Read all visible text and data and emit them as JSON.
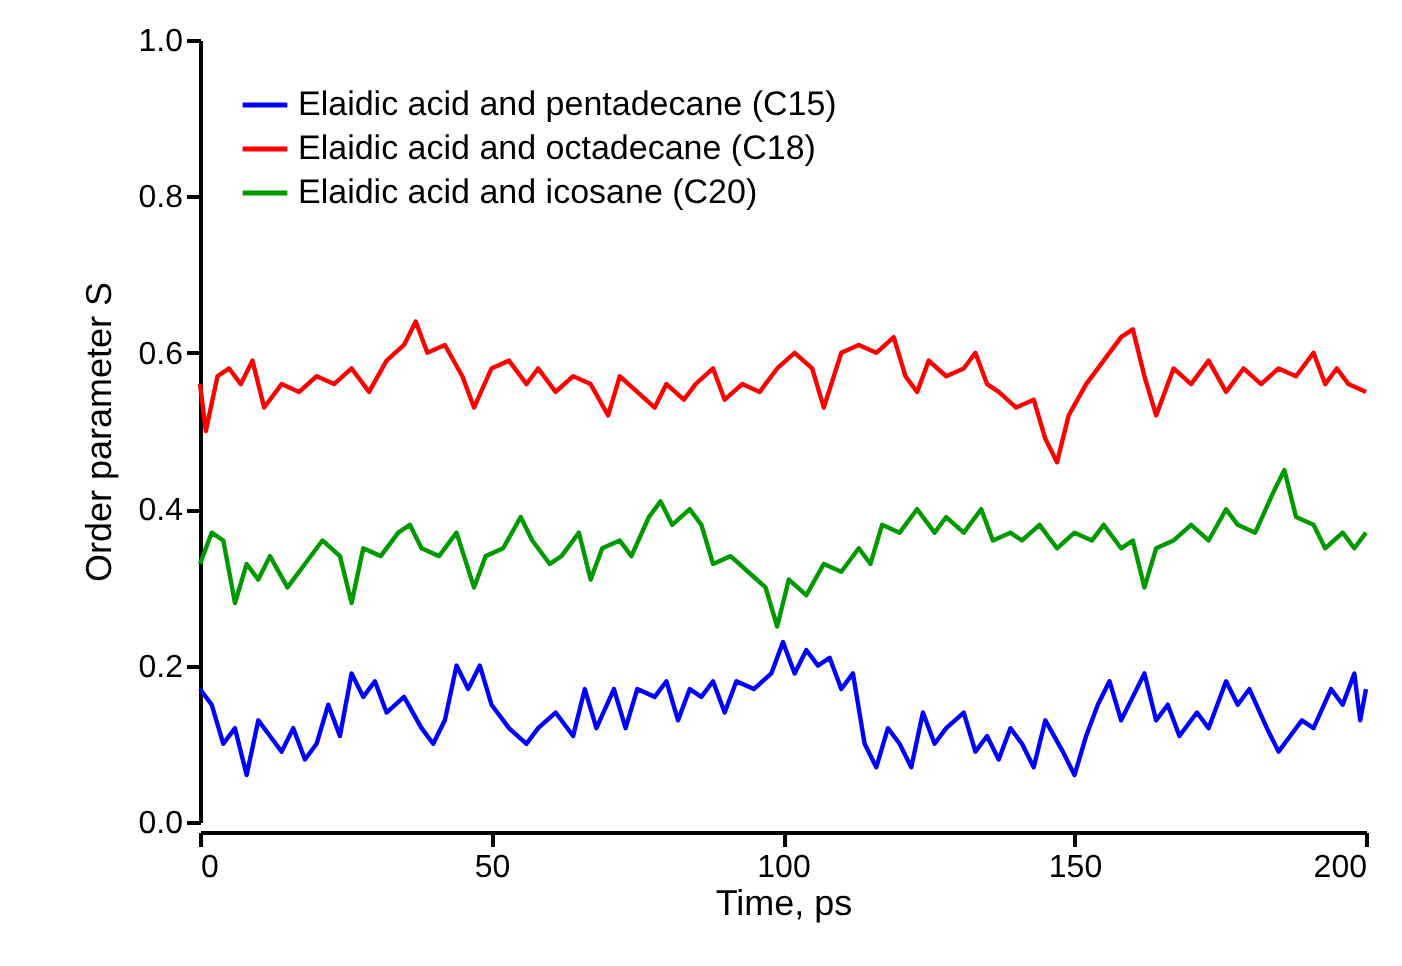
{
  "chart_data": {
    "type": "line",
    "xlabel": "Time, ps",
    "ylabel": "Order parameter S",
    "xlim": [
      0,
      200
    ],
    "ylim": [
      0,
      1
    ],
    "xticks": [
      0,
      50,
      100,
      150,
      200
    ],
    "yticks": [
      {
        "value": 0,
        "label": "0.0"
      },
      0.2,
      0.4,
      0.6,
      0.8,
      {
        "value": 1,
        "label": "1.0"
      }
    ],
    "grid": false,
    "legend": "top left",
    "line_style": "solid",
    "marker": "none",
    "series": [
      {
        "name": "Elaidic acid and pentadecane (C15)",
        "color": "#0000ff",
        "x": [
          0,
          2,
          4,
          6,
          8,
          10,
          12,
          14,
          16,
          18,
          20,
          22,
          24,
          26,
          28,
          30,
          32,
          35,
          38,
          40,
          42,
          44,
          46,
          48,
          50,
          53,
          56,
          58,
          61,
          64,
          66,
          68,
          71,
          73,
          75,
          78,
          80,
          82,
          84,
          86,
          88,
          90,
          92,
          95,
          98,
          100,
          102,
          104,
          106,
          108,
          110,
          112,
          114,
          116,
          118,
          120,
          122,
          124,
          126,
          128,
          131,
          133,
          135,
          137,
          139,
          141,
          143,
          145,
          148,
          150,
          152,
          154,
          156,
          158,
          160,
          162,
          164,
          166,
          168,
          171,
          173,
          176,
          178,
          180,
          183,
          185,
          187,
          189,
          191,
          194,
          196,
          198,
          199,
          200
        ],
        "values": [
          0.17,
          0.15,
          0.1,
          0.12,
          0.06,
          0.13,
          0.11,
          0.09,
          0.12,
          0.08,
          0.1,
          0.15,
          0.11,
          0.19,
          0.16,
          0.18,
          0.14,
          0.16,
          0.12,
          0.1,
          0.13,
          0.2,
          0.17,
          0.2,
          0.15,
          0.12,
          0.1,
          0.12,
          0.14,
          0.11,
          0.17,
          0.12,
          0.17,
          0.12,
          0.17,
          0.16,
          0.18,
          0.13,
          0.17,
          0.16,
          0.18,
          0.14,
          0.18,
          0.17,
          0.19,
          0.23,
          0.19,
          0.22,
          0.2,
          0.21,
          0.17,
          0.19,
          0.1,
          0.07,
          0.12,
          0.1,
          0.07,
          0.14,
          0.1,
          0.12,
          0.14,
          0.09,
          0.11,
          0.08,
          0.12,
          0.1,
          0.07,
          0.13,
          0.09,
          0.06,
          0.11,
          0.15,
          0.18,
          0.13,
          0.16,
          0.19,
          0.13,
          0.15,
          0.11,
          0.14,
          0.12,
          0.18,
          0.15,
          0.17,
          0.12,
          0.09,
          0.11,
          0.13,
          0.12,
          0.17,
          0.15,
          0.19,
          0.13,
          0.17
        ]
      },
      {
        "name": "Elaidic acid and octadecane (C18)",
        "color": "#ff0000",
        "x": [
          0,
          1,
          3,
          5,
          7,
          9,
          11,
          14,
          17,
          20,
          23,
          26,
          29,
          32,
          35,
          37,
          39,
          42,
          45,
          47,
          50,
          53,
          56,
          58,
          61,
          64,
          67,
          70,
          72,
          75,
          78,
          80,
          83,
          85,
          88,
          90,
          93,
          96,
          99,
          102,
          105,
          107,
          110,
          113,
          116,
          119,
          121,
          123,
          125,
          128,
          131,
          133,
          135,
          137,
          140,
          143,
          145,
          147,
          149,
          152,
          155,
          158,
          160,
          162,
          164,
          167,
          170,
          173,
          176,
          179,
          182,
          185,
          188,
          191,
          193,
          195,
          197,
          200
        ],
        "values": [
          0.56,
          0.5,
          0.57,
          0.58,
          0.56,
          0.59,
          0.53,
          0.56,
          0.55,
          0.57,
          0.56,
          0.58,
          0.55,
          0.59,
          0.61,
          0.64,
          0.6,
          0.61,
          0.57,
          0.53,
          0.58,
          0.59,
          0.56,
          0.58,
          0.55,
          0.57,
          0.56,
          0.52,
          0.57,
          0.55,
          0.53,
          0.56,
          0.54,
          0.56,
          0.58,
          0.54,
          0.56,
          0.55,
          0.58,
          0.6,
          0.58,
          0.53,
          0.6,
          0.61,
          0.6,
          0.62,
          0.57,
          0.55,
          0.59,
          0.57,
          0.58,
          0.6,
          0.56,
          0.55,
          0.53,
          0.54,
          0.49,
          0.46,
          0.52,
          0.56,
          0.59,
          0.62,
          0.63,
          0.57,
          0.52,
          0.58,
          0.56,
          0.59,
          0.55,
          0.58,
          0.56,
          0.58,
          0.57,
          0.6,
          0.56,
          0.58,
          0.56,
          0.55
        ]
      },
      {
        "name": "Elaidic acid and icosane (C20)",
        "color": "#009900",
        "x": [
          0,
          2,
          4,
          6,
          8,
          10,
          12,
          15,
          18,
          21,
          24,
          26,
          28,
          31,
          34,
          36,
          38,
          41,
          44,
          47,
          49,
          52,
          55,
          57,
          60,
          62,
          65,
          67,
          69,
          72,
          74,
          77,
          79,
          81,
          84,
          86,
          88,
          91,
          94,
          97,
          99,
          101,
          104,
          107,
          110,
          113,
          115,
          117,
          120,
          123,
          126,
          128,
          131,
          134,
          136,
          139,
          141,
          144,
          147,
          150,
          153,
          155,
          158,
          160,
          162,
          164,
          167,
          170,
          173,
          176,
          178,
          181,
          184,
          186,
          188,
          191,
          193,
          196,
          198,
          200
        ],
        "values": [
          0.33,
          0.37,
          0.36,
          0.28,
          0.33,
          0.31,
          0.34,
          0.3,
          0.33,
          0.36,
          0.34,
          0.28,
          0.35,
          0.34,
          0.37,
          0.38,
          0.35,
          0.34,
          0.37,
          0.3,
          0.34,
          0.35,
          0.39,
          0.36,
          0.33,
          0.34,
          0.37,
          0.31,
          0.35,
          0.36,
          0.34,
          0.39,
          0.41,
          0.38,
          0.4,
          0.38,
          0.33,
          0.34,
          0.32,
          0.3,
          0.25,
          0.31,
          0.29,
          0.33,
          0.32,
          0.35,
          0.33,
          0.38,
          0.37,
          0.4,
          0.37,
          0.39,
          0.37,
          0.4,
          0.36,
          0.37,
          0.36,
          0.38,
          0.35,
          0.37,
          0.36,
          0.38,
          0.35,
          0.36,
          0.3,
          0.35,
          0.36,
          0.38,
          0.36,
          0.4,
          0.38,
          0.37,
          0.42,
          0.45,
          0.39,
          0.38,
          0.35,
          0.37,
          0.35,
          0.37
        ]
      }
    ]
  }
}
